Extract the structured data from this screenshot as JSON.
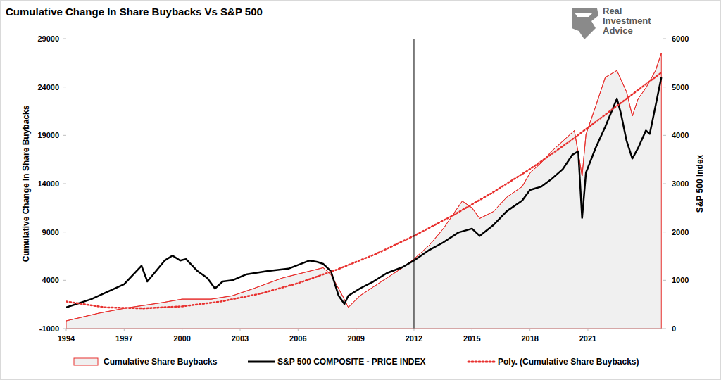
{
  "chart_data": {
    "type": "line",
    "title": "Cumulative Change In Share Buybacks Vs S&P 500",
    "y_label": "Cumulative Change In Share Buybacks",
    "y2_label": "S&P 500 Index",
    "watermark": [
      "Real",
      "Investment",
      "Advice"
    ],
    "xlim": [
      1994,
      2024.9
    ],
    "xticks": [
      1994,
      1997,
      2000,
      2003,
      2006,
      2009,
      2012,
      2015,
      2018,
      2021
    ],
    "ylim": [
      -1000,
      29000
    ],
    "yticks": [
      -1000,
      4000,
      9000,
      14000,
      19000,
      24000,
      29000
    ],
    "y2lim": [
      0,
      6000
    ],
    "y2ticks": [
      0,
      1000,
      2000,
      3000,
      4000,
      5000,
      6000
    ],
    "grid": false,
    "legend": "bottom",
    "annotations": [
      {
        "x": 2012,
        "color": "#000000"
      }
    ],
    "series": [
      {
        "name": "Cumulative Share Buybacks",
        "type": "area",
        "color": "#e8302e",
        "line_style": "solid",
        "x": [
          1994.0,
          1995.7,
          1997.0,
          1999.0,
          2000.0,
          2001.5,
          2002.6,
          2003.7,
          2005.2,
          2006.6,
          2007.3,
          2007.7,
          2008.3,
          2008.6,
          2009.2,
          2010.3,
          2011.4,
          2012.0,
          2012.8,
          2013.5,
          2014.5,
          2015.0,
          2015.4,
          2016.1,
          2016.8,
          2017.6,
          2018.0,
          2018.6,
          2019.1,
          2019.7,
          2020.3,
          2020.7,
          2020.9,
          2021.4,
          2021.9,
          2022.5,
          2023.0,
          2023.3,
          2023.6,
          2024.0,
          2024.5,
          2024.8
        ],
        "values": [
          -200,
          600,
          1100,
          1700,
          2050,
          2050,
          2400,
          3150,
          4250,
          4950,
          5300,
          4600,
          2400,
          1200,
          2400,
          3850,
          5300,
          6200,
          7650,
          9300,
          12200,
          11500,
          10400,
          11100,
          12600,
          13700,
          15100,
          16200,
          17300,
          18400,
          19500,
          14800,
          19100,
          22000,
          25000,
          25700,
          23500,
          21000,
          22800,
          23900,
          25700,
          27500
        ]
      },
      {
        "name": "S&P 500 COMPOSITE - PRICE INDEX",
        "type": "line",
        "color": "#000000",
        "line_style": "solid",
        "axis": "y2",
        "x": [
          1994.0,
          1995.3,
          1997.0,
          1997.9,
          1998.2,
          1999.1,
          1999.5,
          1999.9,
          2000.2,
          2000.8,
          2001.3,
          2001.7,
          2002.1,
          2002.6,
          2003.3,
          2004.4,
          2005.5,
          2006.6,
          2007.0,
          2007.3,
          2007.7,
          2008.1,
          2008.4,
          2008.6,
          2009.2,
          2009.9,
          2010.6,
          2011.4,
          2012.0,
          2012.8,
          2013.5,
          2014.3,
          2015.0,
          2015.4,
          2016.1,
          2016.8,
          2017.6,
          2018.0,
          2018.6,
          2019.1,
          2019.7,
          2020.2,
          2020.5,
          2020.7,
          2020.9,
          2021.4,
          2021.9,
          2022.5,
          2022.7,
          2023.0,
          2023.3,
          2023.6,
          2024.0,
          2024.2,
          2024.5,
          2024.8
        ],
        "values": [
          440,
          610,
          920,
          1300,
          975,
          1410,
          1510,
          1410,
          1440,
          1190,
          1050,
          830,
          975,
          1000,
          1120,
          1190,
          1240,
          1410,
          1380,
          1340,
          1190,
          680,
          510,
          680,
          830,
          975,
          1150,
          1270,
          1410,
          1630,
          1780,
          1990,
          2070,
          1920,
          2140,
          2430,
          2650,
          2870,
          2940,
          3090,
          3300,
          3600,
          3670,
          2290,
          3230,
          3740,
          4180,
          4760,
          4470,
          3890,
          3520,
          3740,
          4100,
          4030,
          4610,
          5200
        ]
      },
      {
        "name": "Poly. (Cumulative Share Buybacks)",
        "type": "line",
        "color": "#e8302e",
        "line_style": "dotted",
        "x": [
          1994,
          1996,
          1998,
          2000,
          2002,
          2004,
          2006,
          2008,
          2010,
          2012,
          2014,
          2016,
          2018,
          2020,
          2022,
          2024.8
        ],
        "values": [
          1800,
          1200,
          1100,
          1300,
          1800,
          2600,
          3700,
          5100,
          6700,
          8600,
          10700,
          13000,
          15500,
          18300,
          21300,
          25500
        ]
      }
    ]
  }
}
